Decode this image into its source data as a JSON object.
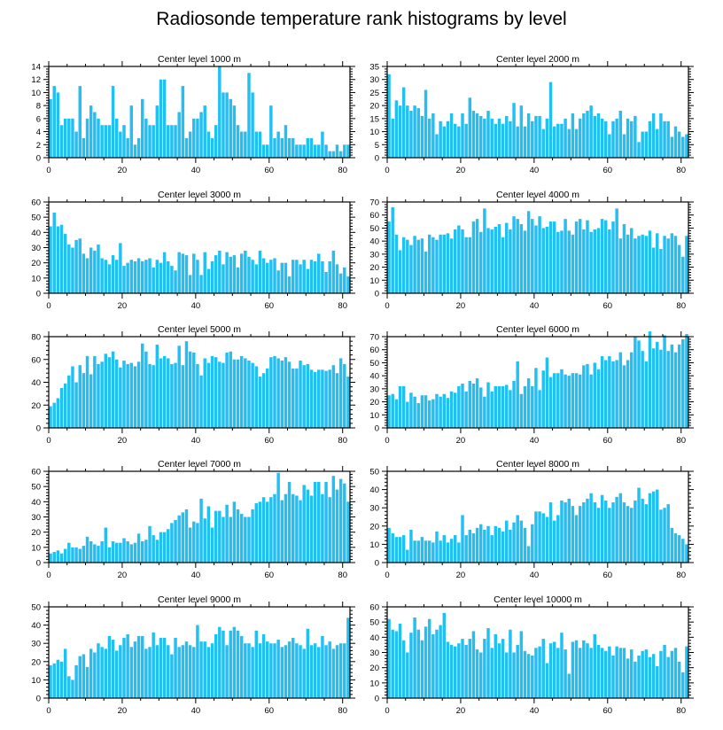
{
  "title": "Radiosonde temperature rank histograms by level",
  "colors": {
    "bar": "#22BFF2",
    "axis": "#000000",
    "background": "#FFFFFF"
  },
  "chart_data": [
    {
      "type": "bar",
      "title": "Center level 1000 m",
      "xlim": [
        0,
        82
      ],
      "ylim": [
        0,
        14
      ],
      "xticks": [
        0,
        20,
        40,
        60,
        80
      ],
      "yticks": [
        0,
        2,
        4,
        6,
        8,
        10,
        12,
        14
      ],
      "values": [
        9,
        11,
        10,
        5,
        6,
        6,
        6,
        4,
        11,
        3,
        6,
        8,
        7,
        6,
        5,
        5,
        5,
        11,
        6,
        4,
        5,
        3,
        8,
        2,
        3,
        9,
        6,
        5,
        5,
        8,
        12,
        12,
        5,
        5,
        5,
        7,
        11,
        3,
        4,
        6,
        6,
        7,
        8,
        4,
        3,
        5,
        14,
        10,
        10,
        9,
        8,
        5,
        4,
        4,
        13,
        10,
        4,
        4,
        2,
        2,
        8,
        3,
        4,
        3,
        5,
        3,
        3,
        2,
        2,
        2,
        3,
        3,
        2,
        2,
        4,
        2,
        1,
        1,
        2,
        1,
        2,
        2
      ]
    },
    {
      "type": "bar",
      "title": "Center level 2000 m",
      "xlim": [
        0,
        82
      ],
      "ylim": [
        0,
        35
      ],
      "xticks": [
        0,
        20,
        40,
        60,
        80
      ],
      "yticks": [
        0,
        5,
        10,
        15,
        20,
        25,
        30,
        35
      ],
      "values": [
        32,
        15,
        22,
        20,
        27,
        20,
        18,
        20,
        19,
        16,
        26,
        15,
        17,
        9,
        14,
        12,
        14,
        17,
        13,
        12,
        17,
        13,
        23,
        18,
        17,
        16,
        15,
        18,
        15,
        13,
        15,
        13,
        16,
        14,
        21,
        12,
        20,
        12,
        17,
        14,
        16,
        16,
        11,
        15,
        29,
        12,
        13,
        13,
        15,
        11,
        17,
        11,
        15,
        17,
        18,
        20,
        16,
        17,
        15,
        14,
        9,
        14,
        15,
        18,
        9,
        15,
        14,
        16,
        6,
        10,
        10,
        14,
        17,
        11,
        17,
        14,
        14,
        8,
        12,
        10,
        8,
        9
      ]
    },
    {
      "type": "bar",
      "title": "Center level 3000 m",
      "xlim": [
        0,
        82
      ],
      "ylim": [
        0,
        60
      ],
      "xticks": [
        0,
        20,
        40,
        60,
        80
      ],
      "yticks": [
        0,
        10,
        20,
        30,
        40,
        50,
        60
      ],
      "values": [
        44,
        53,
        44,
        45,
        39,
        32,
        30,
        35,
        36,
        26,
        23,
        30,
        28,
        32,
        23,
        22,
        19,
        25,
        22,
        33,
        18,
        20,
        22,
        21,
        23,
        21,
        22,
        23,
        17,
        22,
        20,
        27,
        21,
        18,
        15,
        27,
        26,
        25,
        12,
        26,
        22,
        12,
        27,
        16,
        21,
        25,
        28,
        19,
        27,
        24,
        25,
        17,
        26,
        28,
        24,
        22,
        19,
        28,
        23,
        20,
        22,
        23,
        15,
        20,
        20,
        11,
        22,
        22,
        19,
        22,
        16,
        22,
        21,
        26,
        21,
        14,
        21,
        28,
        19,
        13,
        17,
        11
      ]
    },
    {
      "type": "bar",
      "title": "Center level 4000 m",
      "xlim": [
        0,
        82
      ],
      "ylim": [
        0,
        70
      ],
      "xticks": [
        0,
        20,
        40,
        60,
        80
      ],
      "yticks": [
        0,
        10,
        20,
        30,
        40,
        50,
        60,
        70
      ],
      "values": [
        55,
        66,
        45,
        33,
        43,
        41,
        37,
        44,
        41,
        42,
        32,
        45,
        43,
        41,
        45,
        45,
        46,
        42,
        49,
        52,
        49,
        43,
        43,
        55,
        57,
        47,
        65,
        50,
        49,
        51,
        53,
        43,
        54,
        49,
        59,
        57,
        53,
        48,
        63,
        57,
        52,
        59,
        50,
        51,
        55,
        55,
        47,
        48,
        57,
        48,
        45,
        55,
        57,
        49,
        56,
        47,
        49,
        50,
        57,
        56,
        49,
        55,
        65,
        42,
        53,
        45,
        50,
        42,
        44,
        45,
        44,
        48,
        35,
        46,
        34,
        44,
        42,
        46,
        44,
        37,
        28,
        44
      ]
    },
    {
      "type": "bar",
      "title": "Center level 5000 m",
      "xlim": [
        0,
        82
      ],
      "ylim": [
        0,
        80
      ],
      "xticks": [
        0,
        20,
        40,
        60,
        80
      ],
      "yticks": [
        0,
        20,
        40,
        60,
        80
      ],
      "values": [
        19,
        22,
        26,
        35,
        39,
        46,
        54,
        40,
        55,
        48,
        63,
        47,
        63,
        56,
        58,
        65,
        62,
        67,
        60,
        53,
        59,
        56,
        57,
        54,
        58,
        74,
        67,
        56,
        55,
        73,
        61,
        63,
        61,
        56,
        57,
        72,
        55,
        76,
        67,
        66,
        56,
        46,
        61,
        57,
        63,
        62,
        58,
        57,
        66,
        67,
        60,
        60,
        63,
        61,
        59,
        57,
        54,
        45,
        48,
        52,
        62,
        63,
        61,
        59,
        62,
        58,
        52,
        52,
        59,
        55,
        56,
        51,
        49,
        51,
        51,
        50,
        51,
        55,
        48,
        61,
        56,
        45
      ]
    },
    {
      "type": "bar",
      "title": "Center level 6000 m",
      "xlim": [
        0,
        82
      ],
      "ylim": [
        0,
        70
      ],
      "xticks": [
        0,
        20,
        40,
        60,
        80
      ],
      "yticks": [
        0,
        10,
        20,
        30,
        40,
        50,
        60,
        70
      ],
      "values": [
        25,
        26,
        22,
        32,
        32,
        20,
        27,
        24,
        19,
        25,
        25,
        21,
        22,
        26,
        24,
        26,
        23,
        28,
        27,
        32,
        34,
        28,
        36,
        34,
        38,
        31,
        24,
        35,
        28,
        32,
        32,
        32,
        33,
        29,
        36,
        51,
        26,
        32,
        38,
        32,
        46,
        29,
        44,
        54,
        39,
        42,
        42,
        45,
        41,
        40,
        42,
        42,
        41,
        48,
        49,
        41,
        50,
        45,
        55,
        52,
        55,
        51,
        52,
        58,
        48,
        52,
        58,
        70,
        67,
        59,
        51,
        74,
        61,
        66,
        60,
        71,
        59,
        64,
        58,
        64,
        68,
        72
      ]
    },
    {
      "type": "bar",
      "title": "Center level 7000 m",
      "xlim": [
        0,
        82
      ],
      "ylim": [
        0,
        60
      ],
      "xticks": [
        0,
        20,
        40,
        60,
        80
      ],
      "yticks": [
        0,
        10,
        20,
        30,
        40,
        50,
        60
      ],
      "values": [
        6,
        7,
        8,
        6,
        9,
        13,
        10,
        10,
        9,
        11,
        17,
        14,
        12,
        11,
        14,
        23,
        10,
        14,
        13,
        13,
        16,
        14,
        12,
        13,
        19,
        14,
        15,
        24,
        18,
        15,
        20,
        20,
        22,
        26,
        28,
        31,
        33,
        35,
        23,
        27,
        26,
        42,
        29,
        37,
        23,
        34,
        34,
        30,
        38,
        30,
        40,
        35,
        32,
        30,
        30,
        35,
        39,
        40,
        43,
        40,
        43,
        45,
        59,
        41,
        45,
        53,
        45,
        44,
        41,
        51,
        48,
        44,
        53,
        53,
        45,
        53,
        43,
        57,
        48,
        55,
        52,
        40
      ]
    },
    {
      "type": "bar",
      "title": "Center level 8000 m",
      "xlim": [
        0,
        82
      ],
      "ylim": [
        0,
        50
      ],
      "xticks": [
        0,
        20,
        40,
        60,
        80
      ],
      "yticks": [
        0,
        10,
        20,
        30,
        40,
        50
      ],
      "values": [
        19,
        16,
        14,
        14,
        15,
        7,
        18,
        12,
        12,
        14,
        12,
        12,
        11,
        17,
        12,
        15,
        11,
        13,
        15,
        11,
        26,
        15,
        18,
        16,
        19,
        21,
        18,
        20,
        15,
        20,
        19,
        17,
        23,
        18,
        22,
        26,
        23,
        19,
        9,
        21,
        28,
        28,
        27,
        25,
        33,
        23,
        26,
        34,
        33,
        35,
        31,
        26,
        31,
        33,
        35,
        38,
        33,
        30,
        37,
        34,
        30,
        33,
        36,
        38,
        33,
        31,
        30,
        34,
        41,
        35,
        32,
        38,
        39,
        40,
        29,
        30,
        32,
        19,
        16,
        15,
        13,
        10
      ]
    },
    {
      "type": "bar",
      "title": "Center level 9000 m",
      "xlim": [
        0,
        82
      ],
      "ylim": [
        0,
        50
      ],
      "xticks": [
        0,
        20,
        40,
        60,
        80
      ],
      "yticks": [
        0,
        10,
        20,
        30,
        40,
        50
      ],
      "values": [
        18,
        19,
        21,
        20,
        27,
        12,
        10,
        18,
        23,
        24,
        17,
        27,
        25,
        30,
        28,
        27,
        34,
        32,
        26,
        29,
        33,
        35,
        28,
        31,
        34,
        34,
        27,
        28,
        36,
        29,
        33,
        33,
        29,
        24,
        33,
        28,
        29,
        31,
        29,
        28,
        40,
        31,
        31,
        28,
        30,
        35,
        39,
        37,
        29,
        37,
        39,
        37,
        34,
        30,
        30,
        28,
        37,
        30,
        35,
        31,
        30,
        30,
        32,
        28,
        29,
        31,
        33,
        30,
        29,
        27,
        38,
        29,
        30,
        28,
        34,
        29,
        31,
        27,
        29,
        30,
        30,
        44
      ]
    },
    {
      "type": "bar",
      "title": "Center level 10000 m",
      "xlim": [
        0,
        82
      ],
      "ylim": [
        0,
        60
      ],
      "xticks": [
        0,
        20,
        40,
        60,
        80
      ],
      "yticks": [
        0,
        10,
        20,
        30,
        40,
        50,
        60
      ],
      "values": [
        52,
        45,
        44,
        49,
        38,
        30,
        43,
        53,
        45,
        38,
        47,
        52,
        42,
        45,
        48,
        56,
        37,
        35,
        34,
        36,
        39,
        35,
        39,
        44,
        32,
        30,
        39,
        46,
        33,
        42,
        36,
        39,
        30,
        45,
        30,
        35,
        44,
        31,
        29,
        28,
        33,
        34,
        39,
        23,
        36,
        37,
        33,
        43,
        32,
        16,
        37,
        38,
        33,
        38,
        36,
        33,
        42,
        35,
        33,
        31,
        34,
        28,
        34,
        33,
        33,
        26,
        32,
        24,
        28,
        31,
        32,
        27,
        29,
        21,
        31,
        35,
        27,
        31,
        33,
        24,
        17,
        34
      ]
    }
  ]
}
